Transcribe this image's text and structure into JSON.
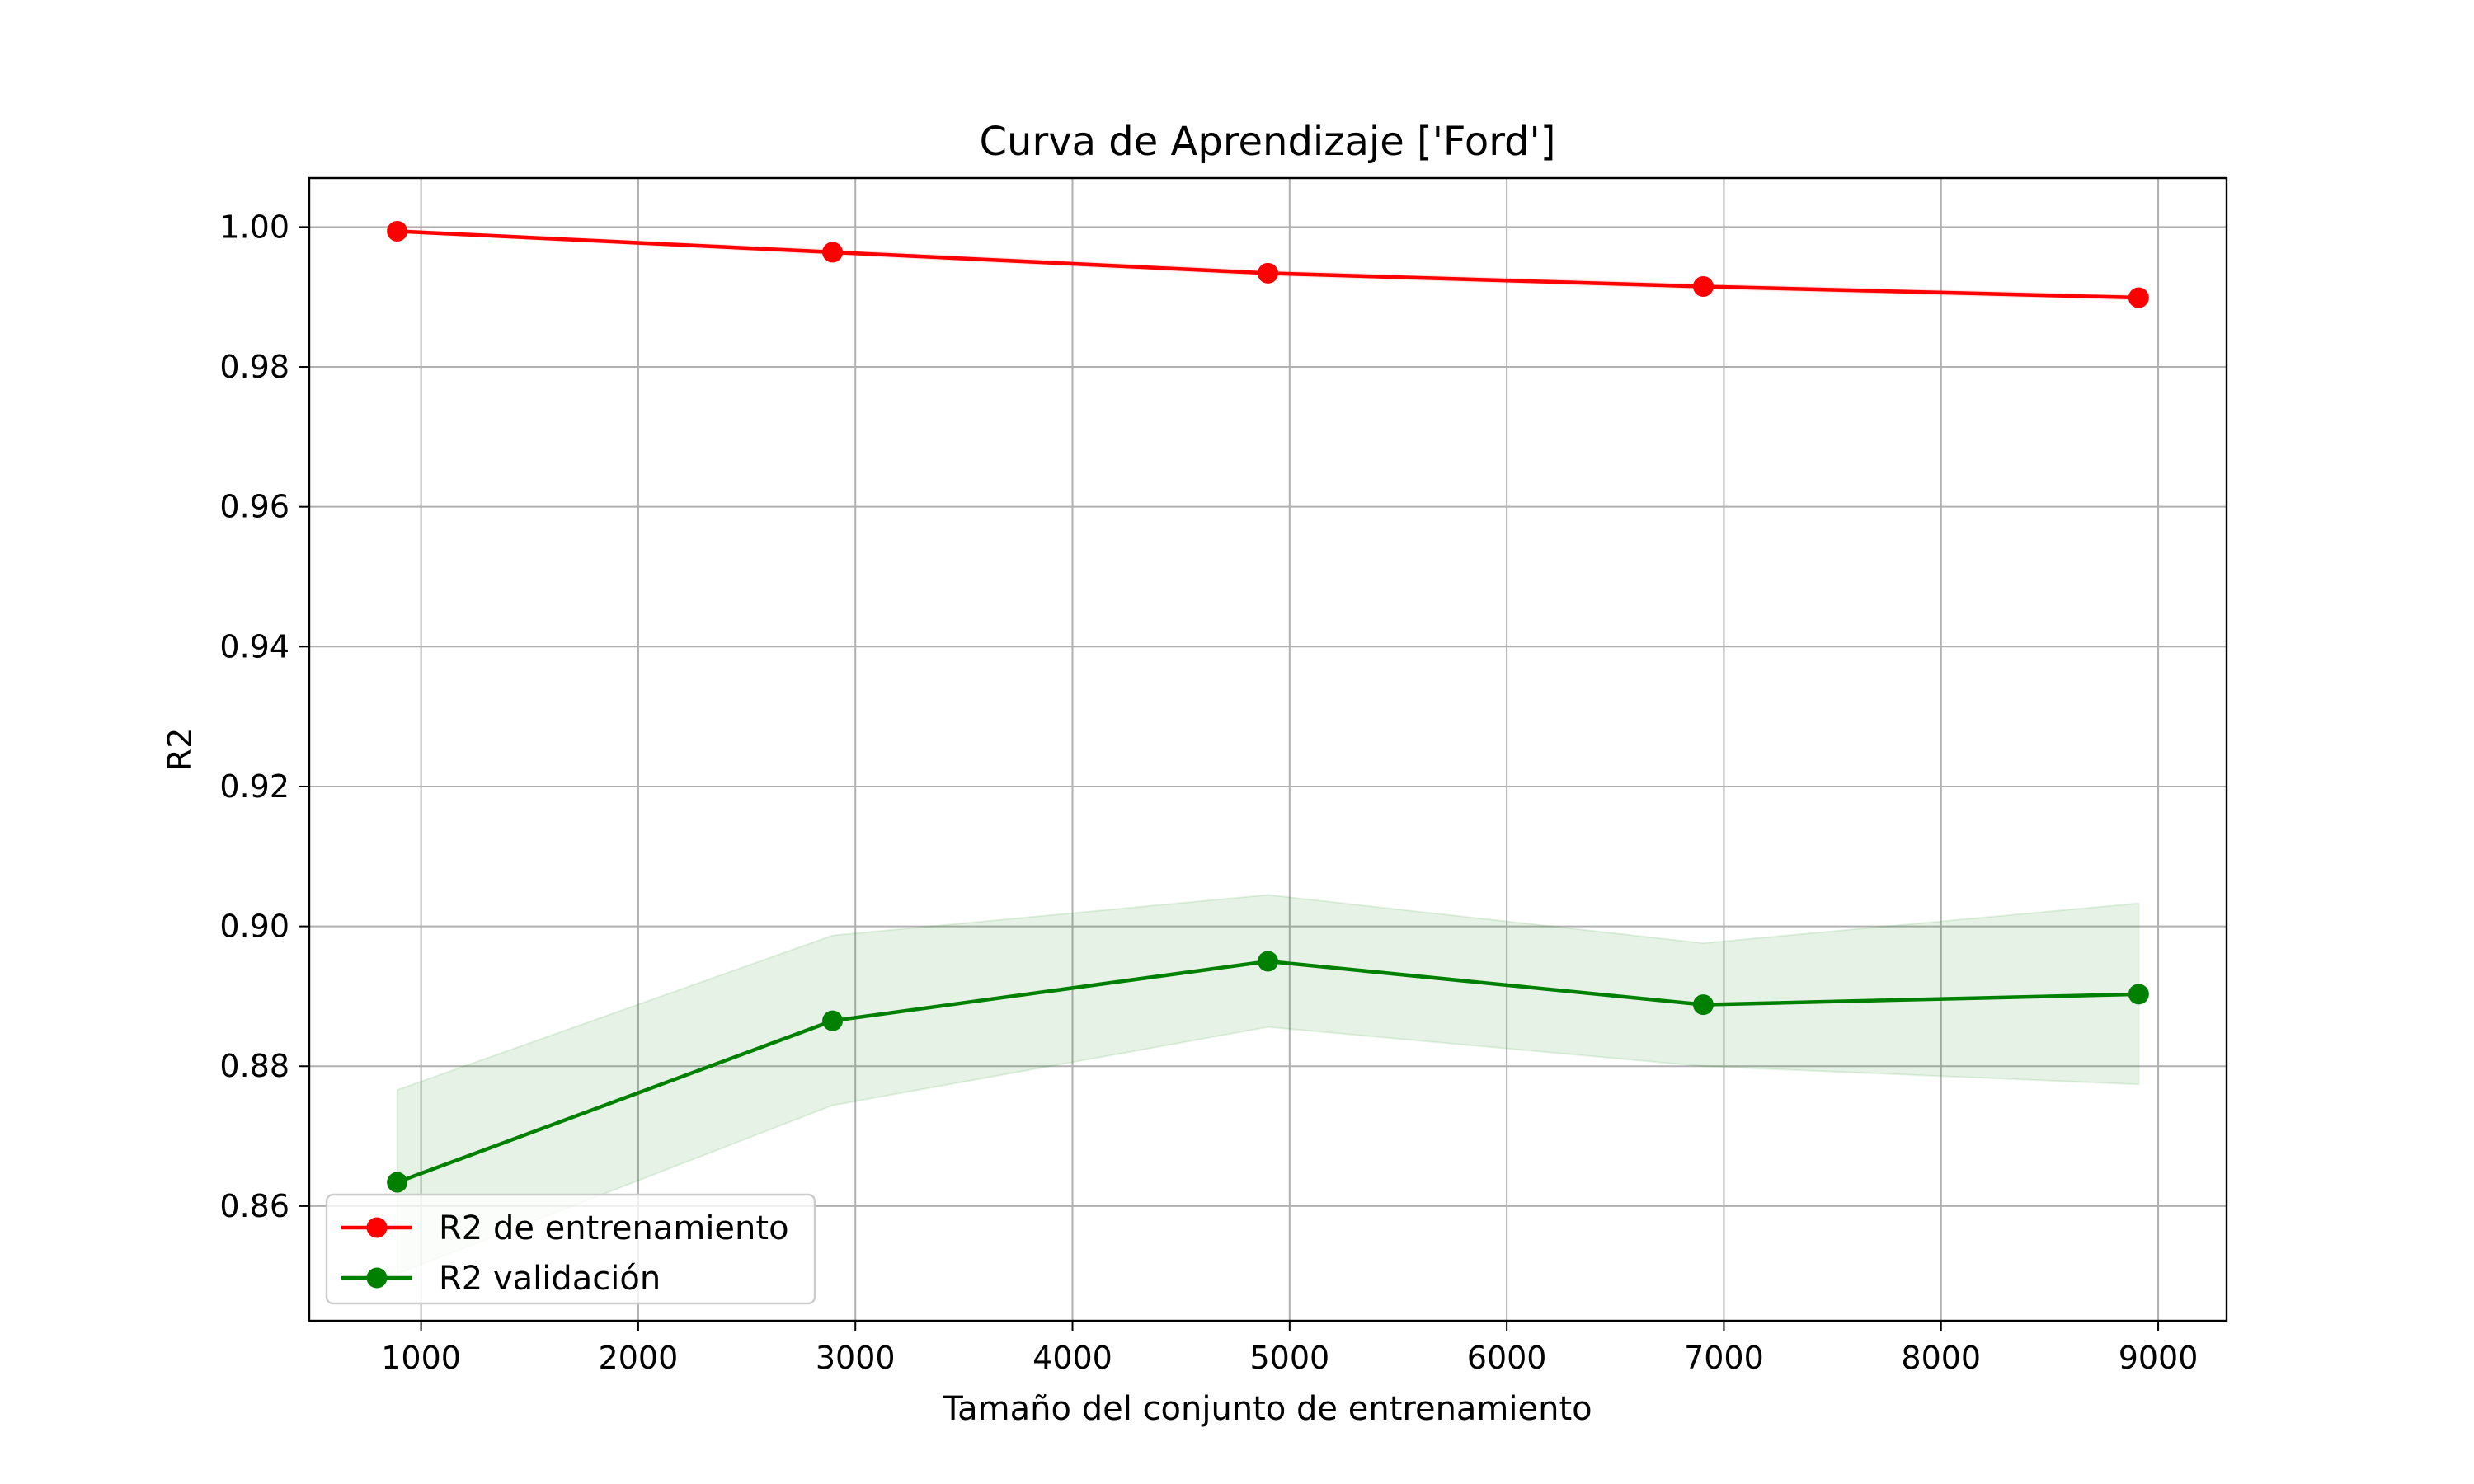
{
  "chart_data": {
    "type": "line",
    "title": "Curva de Aprendizaje ['Ford']",
    "xlabel": "Tamaño del conjunto de entrenamiento",
    "ylabel": "R2",
    "xlim": [
      485,
      9315
    ],
    "ylim": [
      0.8436,
      1.007
    ],
    "x_ticks": [
      1000,
      2000,
      3000,
      4000,
      5000,
      6000,
      7000,
      8000,
      9000
    ],
    "y_ticks": [
      0.86,
      0.88,
      0.9,
      0.92,
      0.94,
      0.96,
      0.98,
      1.0
    ],
    "x_tick_labels": [
      "1000",
      "2000",
      "3000",
      "4000",
      "5000",
      "6000",
      "7000",
      "8000",
      "9000"
    ],
    "y_tick_labels": [
      "0.86",
      "0.88",
      "0.90",
      "0.92",
      "0.94",
      "0.96",
      "0.98",
      "1.00"
    ],
    "grid": true,
    "legend_position": "lower-left",
    "x": [
      890,
      2895,
      4900,
      6905,
      8910
    ],
    "series": [
      {
        "name": "R2 de entrenamiento",
        "color": "#ff0000",
        "marker": "circle",
        "values": [
          0.9994,
          0.9964,
          0.9934,
          0.9915,
          0.9899
        ],
        "band_lower": [
          0.9992,
          0.9961,
          0.9931,
          0.9912,
          0.9896
        ],
        "band_upper": [
          0.9996,
          0.9967,
          0.9937,
          0.9918,
          0.9902
        ],
        "band_color": "#ff0000"
      },
      {
        "name": "R2 validación",
        "color": "#008000",
        "marker": "circle",
        "values": [
          0.8634,
          0.8865,
          0.895,
          0.8888,
          0.8903
        ],
        "band_lower": [
          0.8503,
          0.8744,
          0.8856,
          0.88,
          0.8774
        ],
        "band_upper": [
          0.8766,
          0.8987,
          0.9045,
          0.8976,
          0.9033
        ],
        "band_color": "#008000"
      }
    ]
  }
}
